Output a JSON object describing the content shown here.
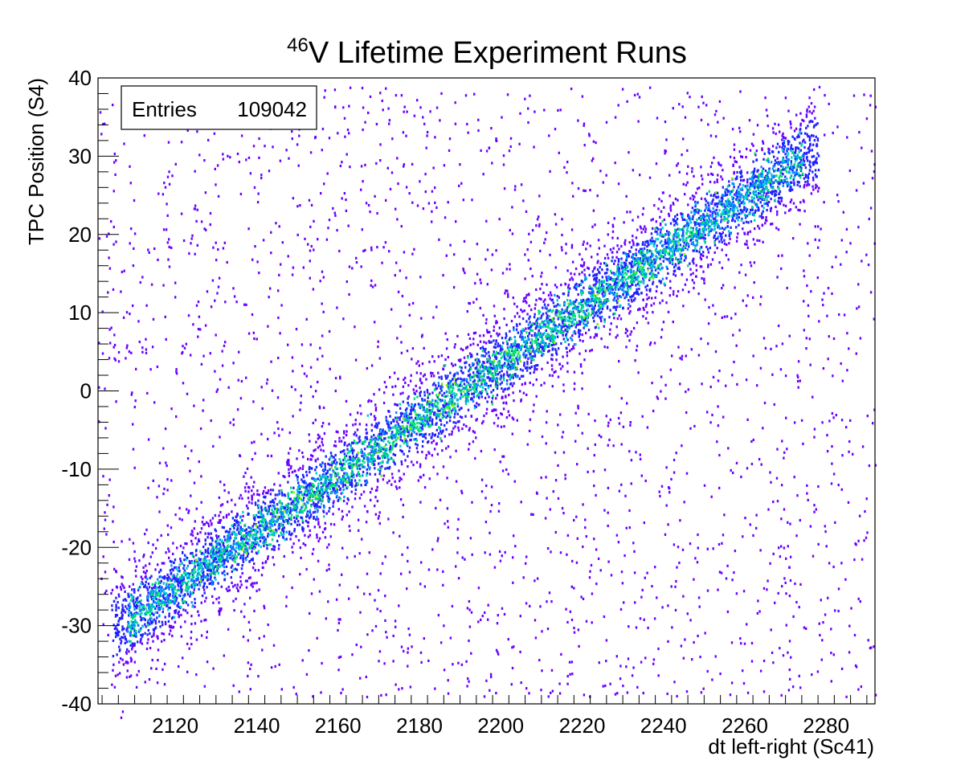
{
  "chart_data": {
    "type": "heatmap",
    "title": {
      "superscript": "46",
      "text": "V Lifetime Experiment Runs"
    },
    "xlabel": "dt left-right (Sc41)",
    "ylabel": "TPC Position (S4)",
    "xlim": [
      2101,
      2292
    ],
    "ylim": [
      -40,
      40
    ],
    "x_ticks": [
      2120,
      2140,
      2160,
      2180,
      2200,
      2220,
      2240,
      2260,
      2280
    ],
    "y_ticks": [
      -40,
      -30,
      -20,
      -10,
      0,
      10,
      20,
      30,
      40
    ],
    "stats": {
      "label": "Entries",
      "value": "109042"
    },
    "band": {
      "description_free": false,
      "start": {
        "x": 2104,
        "y": -30.5
      },
      "end": {
        "x": 2278,
        "y": 31.5
      },
      "width_y": 3.5,
      "core_peak_x": 2185
    },
    "colormap": [
      "#6a00ff",
      "#2020ff",
      "#0090ff",
      "#00d0d0",
      "#00e070",
      "#80f000"
    ],
    "grid": false,
    "legend": "none"
  }
}
